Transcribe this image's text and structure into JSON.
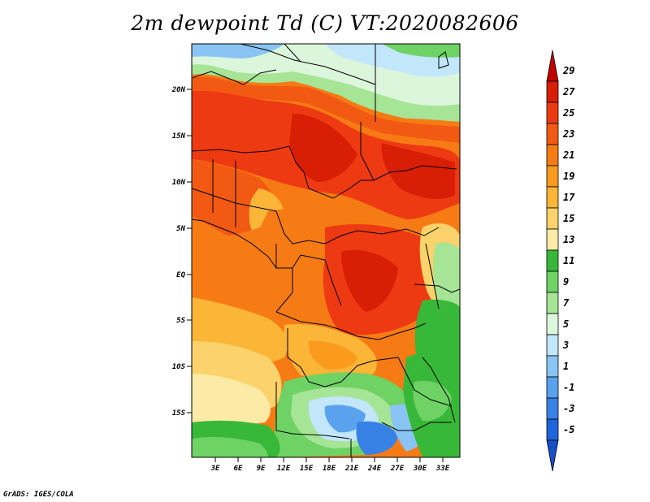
{
  "title": "2m dewpoint Td (C) VT:2020082606",
  "credit": "GrADS: IGES/COLA",
  "map": {
    "lat_labels": [
      "20N",
      "15N",
      "10N",
      "5N",
      "EQ",
      "5S",
      "10S",
      "15S"
    ],
    "lon_labels": [
      "3E",
      "6E",
      "9E",
      "12E",
      "15E",
      "18E",
      "21E",
      "24E",
      "27E",
      "30E",
      "33E"
    ]
  },
  "colorbar": {
    "levels": [
      "29",
      "27",
      "25",
      "23",
      "21",
      "19",
      "17",
      "15",
      "13",
      "11",
      "9",
      "7",
      "5",
      "3",
      "1",
      "-1",
      "-3",
      "-5"
    ],
    "colors": [
      "#c00000",
      "#d81e05",
      "#ee3a12",
      "#f25a14",
      "#f77b14",
      "#fa9b1e",
      "#fbb537",
      "#fbd26b",
      "#fbeba6",
      "#38b838",
      "#6ed264",
      "#a6e496",
      "#dcf6dc",
      "#c2e6fa",
      "#8ac4f4",
      "#5aa2ee",
      "#3882e6",
      "#1e64dc",
      "#1450c8"
    ]
  },
  "colors": {
    "background": "#ffffff",
    "border": "#000000"
  }
}
